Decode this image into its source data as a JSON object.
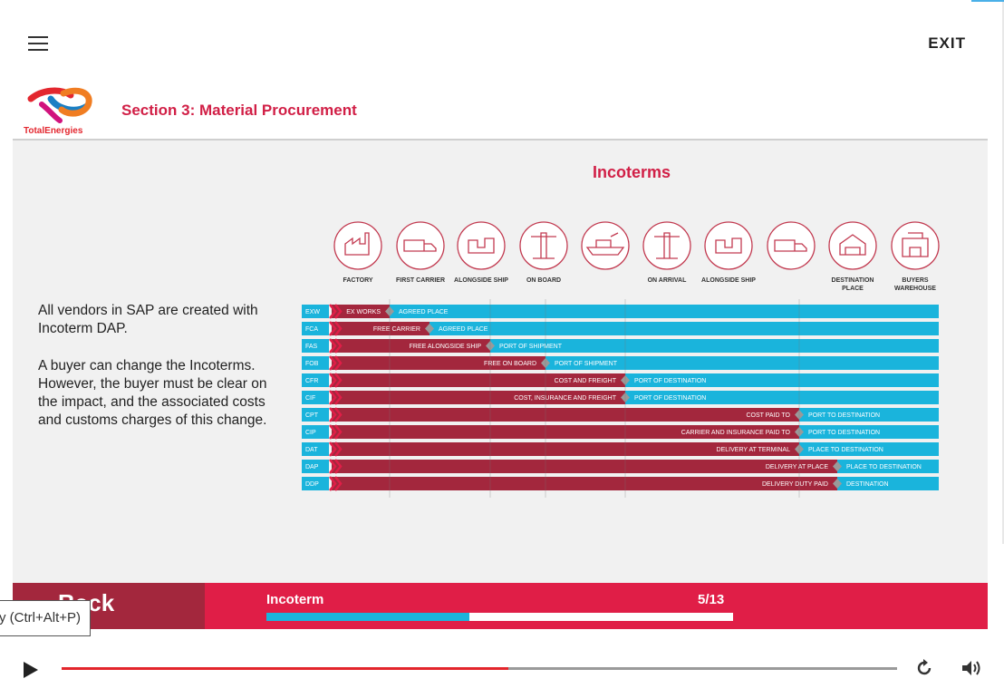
{
  "app": {
    "menu_icon": "hamburger-menu-icon",
    "exit_label": "EXIT"
  },
  "header": {
    "logo_text": "TotalEnergies",
    "section_title": "Section 3: Material Procurement"
  },
  "slide": {
    "title": "Incoterms",
    "paragraphs": [
      "All vendors in SAP are created with Incoterm DAP.",
      "A buyer can change the Incoterms. However, the buyer must be clear on the impact, and the associated costs and customs charges of this change."
    ]
  },
  "incoterms_chart": {
    "columns": [
      "FACTORY",
      "FIRST CARRIER",
      "ALONGSIDE SHIP",
      "ON BOARD",
      "",
      "ON ARRIVAL",
      "ALONGSIDE SHIP",
      "",
      "DESTINATION PLACE",
      "BUYERS WAREHOUSE"
    ],
    "column_icons": [
      "factory-icon",
      "truck-icon",
      "ship-cargo-icon",
      "crane-icon",
      "cargo-ship-icon",
      "crane-icon",
      "ship-cargo-icon",
      "truck-icon",
      "destination-icon",
      "warehouse-icon"
    ],
    "rows": [
      {
        "code": "EXW",
        "risk_label": "EX WORKS",
        "cost_label": "AGREED PLACE"
      },
      {
        "code": "FCA",
        "risk_label": "FREE CARRIER",
        "cost_label": "AGREED PLACE"
      },
      {
        "code": "FAS",
        "risk_label": "FREE ALONGSIDE SHIP",
        "cost_label": "PORT OF SHIPMENT"
      },
      {
        "code": "FOB",
        "risk_label": "FREE ON BOARD",
        "cost_label": "PORT OF SHIPMENT"
      },
      {
        "code": "CFR",
        "risk_label": "COST AND FREIGHT",
        "cost_label": "PORT OF DESTINATION"
      },
      {
        "code": "CIF",
        "risk_label": "COST, INSURANCE AND FREIGHT",
        "cost_label": "PORT OF DESTINATION"
      },
      {
        "code": "CPT",
        "risk_label": "COST PAID TO",
        "cost_label": "PORT TO DESTINATION"
      },
      {
        "code": "CIP",
        "risk_label": "CARRIER AND INSURANCE PAID TO",
        "cost_label": "PORT TO DESTINATION"
      },
      {
        "code": "DAT",
        "risk_label": "DELIVERY AT TERMINAL",
        "cost_label": "PLACE TO DESTINATION"
      },
      {
        "code": "DAP",
        "risk_label": "DELIVERY AT PLACE",
        "cost_label": "PLACE TO DESTINATION"
      },
      {
        "code": "DDP",
        "risk_label": "DELIVERY DUTY PAID",
        "cost_label": "DESTINATION"
      }
    ],
    "colors": {
      "seller": "#a3273d",
      "buyer": "#1ab4dc",
      "code_bg": "#1ab4dc",
      "arrow": "#e01e47"
    }
  },
  "footer": {
    "back_label": "Back",
    "title": "Incoterm",
    "page": "5/13",
    "progress": 0.435
  },
  "tooltip": {
    "text": "y (Ctrl+Alt+P)"
  },
  "player": {
    "play_icon": "play-icon",
    "replay_icon": "replay-icon",
    "volume_icon": "volume-icon",
    "seek_progress": 0.535
  }
}
